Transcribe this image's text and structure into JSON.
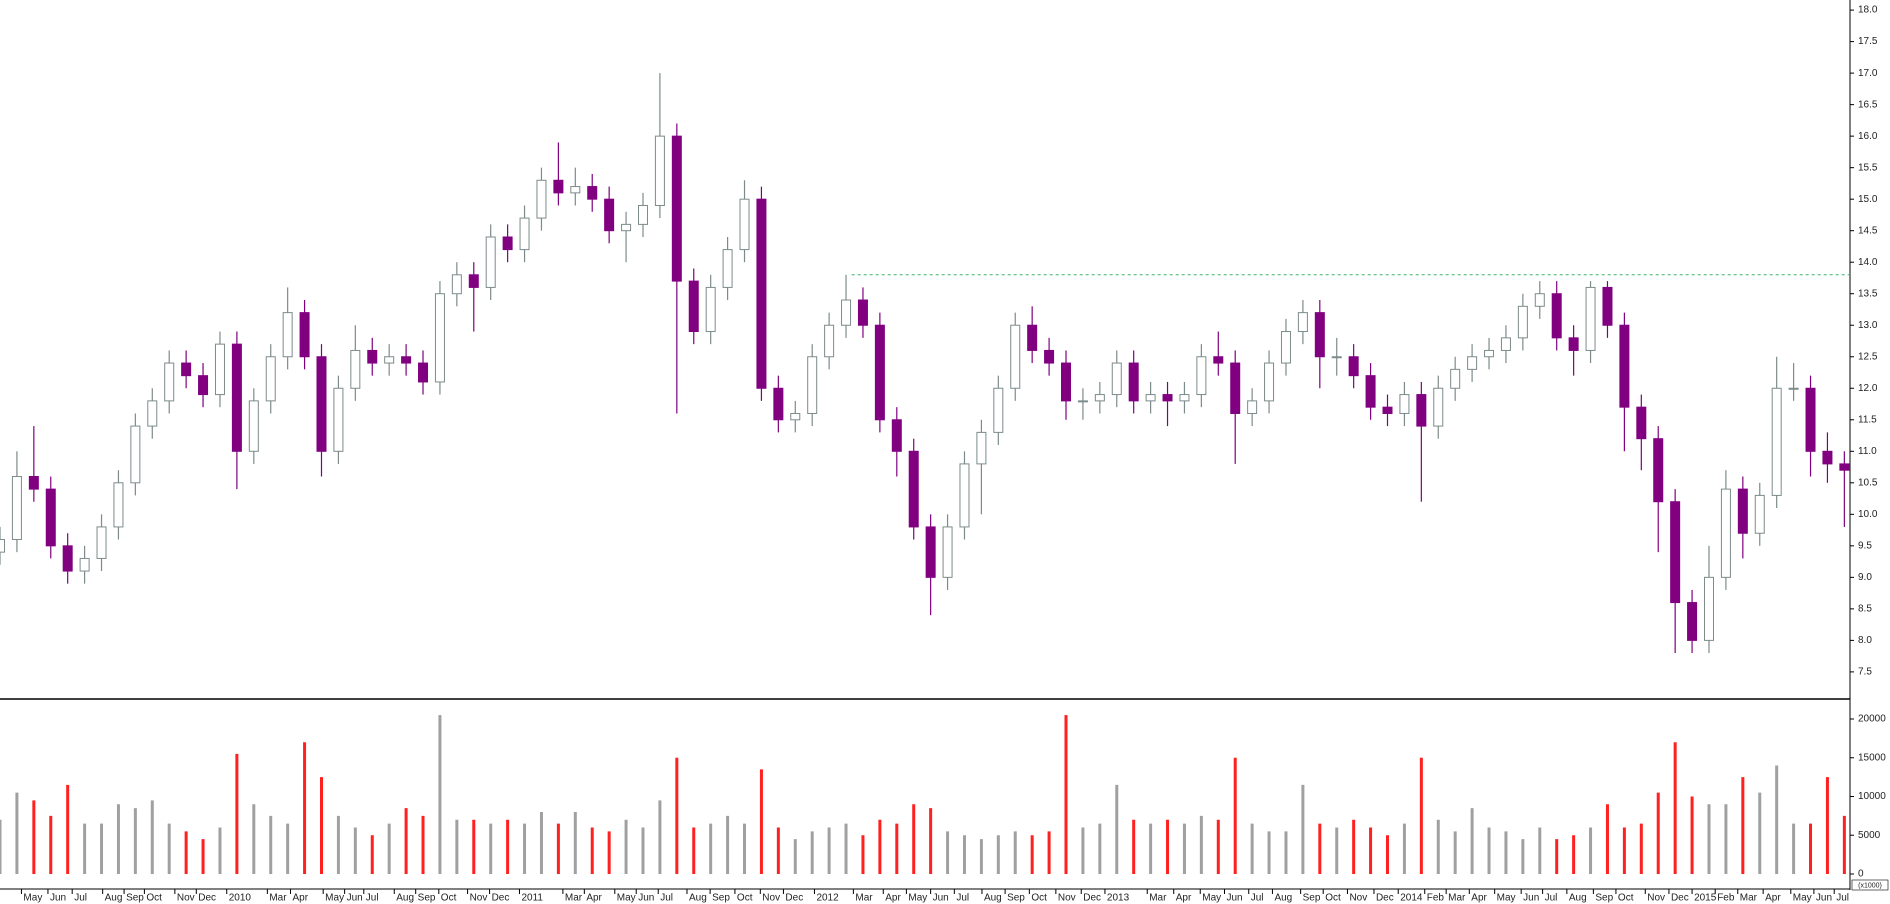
{
  "chart_data": [
    {
      "type": "candlestick",
      "name": "price",
      "x": [
        0,
        3,
        6,
        9,
        12,
        15,
        18,
        21,
        24,
        27,
        30,
        33,
        36,
        39,
        42,
        45,
        48,
        51,
        54,
        57,
        60,
        63,
        66,
        69,
        72,
        75,
        78,
        81,
        84,
        87,
        90,
        93,
        96,
        99,
        102,
        105,
        108,
        111,
        114,
        117,
        120,
        123,
        126,
        129,
        132,
        135,
        138,
        141,
        144,
        147,
        150,
        153,
        156,
        159,
        162,
        165,
        168,
        171,
        174,
        177,
        180,
        183,
        186,
        189,
        192,
        195,
        198,
        201,
        204,
        207,
        210,
        213,
        216,
        219,
        222,
        225,
        228,
        231,
        234,
        237,
        240,
        243,
        246,
        249,
        252,
        255,
        258,
        261,
        264,
        267,
        270,
        273,
        276,
        279,
        282,
        285,
        288,
        291,
        294,
        297,
        300,
        303,
        306,
        309,
        312,
        315,
        318,
        321,
        324,
        327
      ],
      "ohlc": [
        [
          9.4,
          9.8,
          9.2,
          9.6
        ],
        [
          9.6,
          11.0,
          9.4,
          10.6
        ],
        [
          10.6,
          11.4,
          10.2,
          10.4
        ],
        [
          10.4,
          10.6,
          9.3,
          9.5
        ],
        [
          9.5,
          9.7,
          8.9,
          9.1
        ],
        [
          9.1,
          9.5,
          8.9,
          9.3
        ],
        [
          9.3,
          10.0,
          9.1,
          9.8
        ],
        [
          9.8,
          10.7,
          9.6,
          10.5
        ],
        [
          10.5,
          11.6,
          10.3,
          11.4
        ],
        [
          11.4,
          12.0,
          11.2,
          11.8
        ],
        [
          11.8,
          12.6,
          11.6,
          12.4
        ],
        [
          12.4,
          12.6,
          12.0,
          12.2
        ],
        [
          12.2,
          12.4,
          11.7,
          11.9
        ],
        [
          11.9,
          12.9,
          11.7,
          12.7
        ],
        [
          12.7,
          12.9,
          10.4,
          11.0
        ],
        [
          11.0,
          12.0,
          10.8,
          11.8
        ],
        [
          11.8,
          12.7,
          11.6,
          12.5
        ],
        [
          12.5,
          13.6,
          12.3,
          13.2
        ],
        [
          13.2,
          13.4,
          12.3,
          12.5
        ],
        [
          12.5,
          12.7,
          10.6,
          11.0
        ],
        [
          11.0,
          12.2,
          10.8,
          12.0
        ],
        [
          12.0,
          13.0,
          11.8,
          12.6
        ],
        [
          12.6,
          12.8,
          12.2,
          12.4
        ],
        [
          12.4,
          12.7,
          12.2,
          12.5
        ],
        [
          12.5,
          12.7,
          12.2,
          12.4
        ],
        [
          12.4,
          12.6,
          11.9,
          12.1
        ],
        [
          12.1,
          13.7,
          11.9,
          13.5
        ],
        [
          13.5,
          14.0,
          13.3,
          13.8
        ],
        [
          13.8,
          14.0,
          12.9,
          13.6
        ],
        [
          13.6,
          14.6,
          13.4,
          14.4
        ],
        [
          14.4,
          14.6,
          14.0,
          14.2
        ],
        [
          14.2,
          14.9,
          14.0,
          14.7
        ],
        [
          14.7,
          15.5,
          14.5,
          15.3
        ],
        [
          15.3,
          15.9,
          14.9,
          15.1
        ],
        [
          15.1,
          15.5,
          14.9,
          15.2
        ],
        [
          15.2,
          15.4,
          14.8,
          15.0
        ],
        [
          15.0,
          15.2,
          14.3,
          14.5
        ],
        [
          14.5,
          14.8,
          14.0,
          14.6
        ],
        [
          14.6,
          15.1,
          14.4,
          14.9
        ],
        [
          14.9,
          17.0,
          14.7,
          16.0
        ],
        [
          16.0,
          16.2,
          11.6,
          13.7
        ],
        [
          13.7,
          13.9,
          12.7,
          12.9
        ],
        [
          12.9,
          13.8,
          12.7,
          13.6
        ],
        [
          13.6,
          14.4,
          13.4,
          14.2
        ],
        [
          14.2,
          15.3,
          14.0,
          15.0
        ],
        [
          15.0,
          15.2,
          11.8,
          12.0
        ],
        [
          12.0,
          12.2,
          11.3,
          11.5
        ],
        [
          11.5,
          11.8,
          11.3,
          11.6
        ],
        [
          11.6,
          12.7,
          11.4,
          12.5
        ],
        [
          12.5,
          13.2,
          12.3,
          13.0
        ],
        [
          13.0,
          13.8,
          12.8,
          13.4
        ],
        [
          13.4,
          13.6,
          12.8,
          13.0
        ],
        [
          13.0,
          13.2,
          11.3,
          11.5
        ],
        [
          11.5,
          11.7,
          10.6,
          11.0
        ],
        [
          11.0,
          11.2,
          9.6,
          9.8
        ],
        [
          9.8,
          10.0,
          8.4,
          9.0
        ],
        [
          9.0,
          10.0,
          8.8,
          9.8
        ],
        [
          9.8,
          11.0,
          9.6,
          10.8
        ],
        [
          10.8,
          11.5,
          10.0,
          11.3
        ],
        [
          11.3,
          12.2,
          11.1,
          12.0
        ],
        [
          12.0,
          13.2,
          11.8,
          13.0
        ],
        [
          13.0,
          13.3,
          12.4,
          12.6
        ],
        [
          12.6,
          12.8,
          12.2,
          12.4
        ],
        [
          12.4,
          12.6,
          11.5,
          11.8
        ],
        [
          11.8,
          12.0,
          11.5,
          11.8
        ],
        [
          11.8,
          12.1,
          11.6,
          11.9
        ],
        [
          11.9,
          12.6,
          11.7,
          12.4
        ],
        [
          12.4,
          12.6,
          11.6,
          11.8
        ],
        [
          11.8,
          12.1,
          11.6,
          11.9
        ],
        [
          11.9,
          12.1,
          11.4,
          11.8
        ],
        [
          11.8,
          12.1,
          11.6,
          11.9
        ],
        [
          11.9,
          12.7,
          11.7,
          12.5
        ],
        [
          12.5,
          12.9,
          12.2,
          12.4
        ],
        [
          12.4,
          12.6,
          10.8,
          11.6
        ],
        [
          11.6,
          12.0,
          11.4,
          11.8
        ],
        [
          11.8,
          12.6,
          11.6,
          12.4
        ],
        [
          12.4,
          13.1,
          12.2,
          12.9
        ],
        [
          12.9,
          13.4,
          12.7,
          13.2
        ],
        [
          13.2,
          13.4,
          12.0,
          12.5
        ],
        [
          12.5,
          12.8,
          12.2,
          12.5
        ],
        [
          12.5,
          12.7,
          12.0,
          12.2
        ],
        [
          12.2,
          12.4,
          11.5,
          11.7
        ],
        [
          11.7,
          11.9,
          11.4,
          11.6
        ],
        [
          11.6,
          12.1,
          11.4,
          11.9
        ],
        [
          11.9,
          12.1,
          10.2,
          11.4
        ],
        [
          11.4,
          12.2,
          11.2,
          12.0
        ],
        [
          12.0,
          12.5,
          11.8,
          12.3
        ],
        [
          12.3,
          12.7,
          12.1,
          12.5
        ],
        [
          12.5,
          12.8,
          12.3,
          12.6
        ],
        [
          12.6,
          13.0,
          12.4,
          12.8
        ],
        [
          12.8,
          13.5,
          12.6,
          13.3
        ],
        [
          13.3,
          13.7,
          13.1,
          13.5
        ],
        [
          13.5,
          13.7,
          12.6,
          12.8
        ],
        [
          12.8,
          13.0,
          12.2,
          12.6
        ],
        [
          12.6,
          13.7,
          12.4,
          13.6
        ],
        [
          13.6,
          13.7,
          12.8,
          13.0
        ],
        [
          13.0,
          13.2,
          11.0,
          11.7
        ],
        [
          11.7,
          11.9,
          10.7,
          11.2
        ],
        [
          11.2,
          11.4,
          9.4,
          10.2
        ],
        [
          10.2,
          10.4,
          7.8,
          8.6
        ],
        [
          8.6,
          8.8,
          7.8,
          8.0
        ],
        [
          8.0,
          9.5,
          7.8,
          9.0
        ],
        [
          9.0,
          10.7,
          8.8,
          10.4
        ],
        [
          10.4,
          10.6,
          9.3,
          9.7
        ],
        [
          9.7,
          10.5,
          9.5,
          10.3
        ],
        [
          10.3,
          12.5,
          10.1,
          12.0
        ],
        [
          12.0,
          12.4,
          11.8,
          12.0
        ],
        [
          12.0,
          12.2,
          10.6,
          11.0
        ],
        [
          11.0,
          11.3,
          10.5,
          10.8
        ],
        [
          10.8,
          11.0,
          9.8,
          10.7
        ]
      ],
      "up_color": "#7d8b8b",
      "down_color": "#800080",
      "xlim": [
        0,
        328
      ],
      "ylim": [
        7.07,
        18.16
      ],
      "yticks": [
        7.5,
        {
          "value": 8,
          "label": "8.0"
        },
        8.5,
        {
          "value": 9,
          "label": "9.0"
        },
        9.5,
        {
          "value": 10,
          "label": "10.0"
        },
        10.5,
        {
          "value": 11,
          "label": "11.0"
        },
        11.5,
        {
          "value": 12,
          "label": "12.0"
        },
        12.5,
        {
          "value": 13,
          "label": "13.0"
        },
        13.5,
        {
          "value": 14,
          "label": "14.0"
        },
        14.5,
        {
          "value": 15,
          "label": "15.0"
        },
        15.5,
        {
          "value": 16,
          "label": "16.0"
        },
        16.5,
        {
          "value": 17,
          "label": "17.0"
        },
        17.5,
        {
          "value": 18,
          "label": "18.0"
        }
      ],
      "reference_line": {
        "value": 13.8,
        "from": 151,
        "color": "#3cb371"
      }
    },
    {
      "type": "bar",
      "name": "volume",
      "unit_label": "(x1000)",
      "values": [
        7000,
        10500,
        9500,
        7500,
        11500,
        6500,
        6500,
        9000,
        8500,
        9500,
        6500,
        5500,
        4500,
        6000,
        15500,
        9000,
        7500,
        6500,
        17000,
        12500,
        7500,
        6000,
        5000,
        6500,
        8500,
        7500,
        20500,
        7000,
        7000,
        6500,
        7000,
        6500,
        8000,
        6500,
        8000,
        6000,
        5500,
        7000,
        6000,
        9500,
        15000,
        6000,
        6500,
        7500,
        6500,
        13500,
        6000,
        4500,
        5500,
        6000,
        6500,
        5000,
        7000,
        6500,
        9000,
        8500,
        5500,
        5000,
        4500,
        5000,
        5500,
        5000,
        5500,
        20500,
        6000,
        6500,
        11500,
        7000,
        6500,
        7000,
        6500,
        7500,
        7000,
        15000,
        6500,
        5500,
        5500,
        11500,
        6500,
        6000,
        7000,
        6000,
        5000,
        6500,
        15000,
        7000,
        5500,
        8500,
        6000,
        5500,
        4500,
        6000,
        4500,
        5000,
        6000,
        9000,
        6000,
        6500,
        10500,
        17000,
        10000,
        9000,
        9000,
        12500,
        10500,
        14000,
        6500,
        6500,
        12500,
        7500
      ],
      "ylim": [
        0,
        22580
      ],
      "yticks": [
        0,
        5000,
        10000,
        15000,
        20000
      ],
      "xticks": [
        {
          "value": 3.8,
          "label": "May"
        },
        {
          "value": 8.5,
          "label": "Jun"
        },
        {
          "value": 12.8,
          "label": "Jul"
        },
        {
          "value": 18.2,
          "label": "Aug"
        },
        {
          "value": 22,
          "label": "Sep"
        },
        {
          "value": 25.6,
          "label": "Oct"
        },
        {
          "value": 31,
          "label": "Nov"
        },
        {
          "value": 34.8,
          "label": "Dec"
        },
        {
          "value": 40.2,
          "label": "2010"
        },
        {
          "value": 47.4,
          "label": "Mar"
        },
        {
          "value": 51.5,
          "label": "Apr"
        },
        {
          "value": 57.3,
          "label": "May"
        },
        {
          "value": 61.1,
          "label": "Jun"
        },
        {
          "value": 64.5,
          "label": "Jul"
        },
        {
          "value": 69.9,
          "label": "Aug"
        },
        {
          "value": 73.7,
          "label": "Sep"
        },
        {
          "value": 77.8,
          "label": "Oct"
        },
        {
          "value": 82.9,
          "label": "Nov"
        },
        {
          "value": 86.8,
          "label": "Dec"
        },
        {
          "value": 92.1,
          "label": "2011"
        },
        {
          "value": 99.8,
          "label": "Mar"
        },
        {
          "value": 103.6,
          "label": "Apr"
        },
        {
          "value": 109,
          "label": "May"
        },
        {
          "value": 112.8,
          "label": "Jun"
        },
        {
          "value": 116.7,
          "label": "Jul"
        },
        {
          "value": 121.8,
          "label": "Aug"
        },
        {
          "value": 125.9,
          "label": "Sep"
        },
        {
          "value": 130.3,
          "label": "Oct"
        },
        {
          "value": 134.8,
          "label": "Nov"
        },
        {
          "value": 138.9,
          "label": "Dec"
        },
        {
          "value": 144.4,
          "label": "2012"
        },
        {
          "value": 151.3,
          "label": "Mar"
        },
        {
          "value": 156.6,
          "label": "Apr"
        },
        {
          "value": 160.7,
          "label": "May"
        },
        {
          "value": 165,
          "label": "Jun"
        },
        {
          "value": 169.2,
          "label": "Jul"
        },
        {
          "value": 174.1,
          "label": "Aug"
        },
        {
          "value": 178.2,
          "label": "Sep"
        },
        {
          "value": 182.5,
          "label": "Oct"
        },
        {
          "value": 187.2,
          "label": "Nov"
        },
        {
          "value": 191.7,
          "label": "Dec"
        },
        {
          "value": 195.9,
          "label": "2013"
        },
        {
          "value": 203.4,
          "label": "Mar"
        },
        {
          "value": 208.1,
          "label": "Apr"
        },
        {
          "value": 212.8,
          "label": "May"
        },
        {
          "value": 217.1,
          "label": "Jun"
        },
        {
          "value": 221.4,
          "label": "Jul"
        },
        {
          "value": 225.6,
          "label": "Aug"
        },
        {
          "value": 230.6,
          "label": "Sep"
        },
        {
          "value": 234.6,
          "label": "Oct"
        },
        {
          "value": 238.9,
          "label": "Nov"
        },
        {
          "value": 243.6,
          "label": "Dec"
        },
        {
          "value": 247.9,
          "label": "2014"
        },
        {
          "value": 252.6,
          "label": "Feb"
        },
        {
          "value": 256.4,
          "label": "Mar"
        },
        {
          "value": 260.5,
          "label": "Apr"
        },
        {
          "value": 265,
          "label": "May"
        },
        {
          "value": 269.7,
          "label": "Jun"
        },
        {
          "value": 273.5,
          "label": "Jul"
        },
        {
          "value": 277.8,
          "label": "Aug"
        },
        {
          "value": 282.5,
          "label": "Sep"
        },
        {
          "value": 286.5,
          "label": "Oct"
        },
        {
          "value": 291.7,
          "label": "Nov"
        },
        {
          "value": 295.9,
          "label": "Dec"
        },
        {
          "value": 300,
          "label": "2015"
        },
        {
          "value": 304.1,
          "label": "Feb"
        },
        {
          "value": 308.1,
          "label": "Mar"
        },
        {
          "value": 312.6,
          "label": "Apr"
        },
        {
          "value": 317.5,
          "label": "May"
        },
        {
          "value": 321.6,
          "label": "Jun"
        },
        {
          "value": 325.2,
          "label": "Jul"
        }
      ],
      "up_color": "#a0a0a0",
      "down_color": "#ff2020"
    }
  ]
}
